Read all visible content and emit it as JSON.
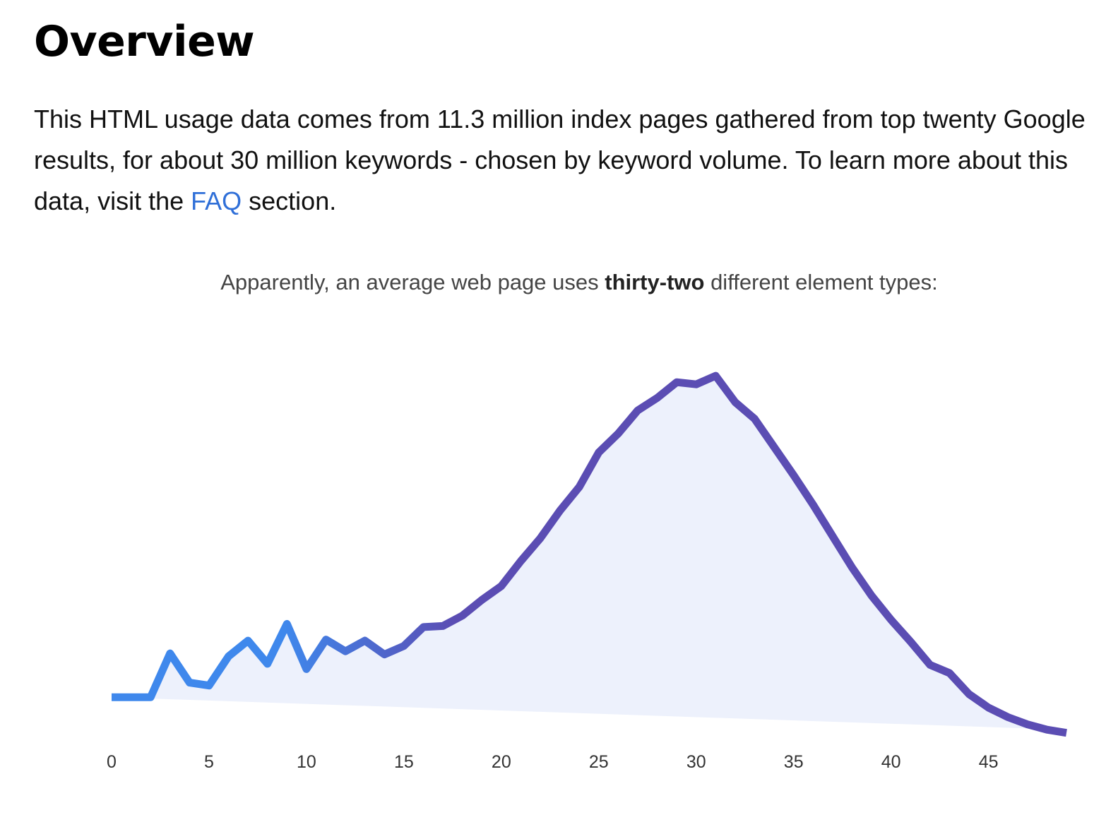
{
  "page": {
    "title": "Overview",
    "intro_before_link": "This HTML usage data comes from 11.3 million index pages gathered from top twenty Google results, for about 30 million keywords - chosen by keyword volume. To learn more about this data, visit the ",
    "faq_link": "FAQ",
    "intro_after_link": " section."
  },
  "chart_caption": {
    "before": "Apparently, an average web page uses ",
    "bold": "thirty-two",
    "after": " different element types:"
  },
  "chart_data": {
    "type": "area",
    "x": [
      0,
      1,
      2,
      3,
      4,
      5,
      6,
      7,
      8,
      9,
      10,
      11,
      12,
      13,
      14,
      15,
      16,
      17,
      18,
      19,
      20,
      21,
      22,
      23,
      24,
      25,
      26,
      27,
      28,
      29,
      30,
      31,
      32,
      33,
      34,
      35,
      36,
      37,
      38,
      39,
      40,
      41,
      42,
      43,
      44,
      45,
      46,
      47,
      48,
      49
    ],
    "y": [
      0,
      0,
      0,
      16.5,
      5.5,
      4.4,
      15.4,
      21.3,
      12.6,
      27.6,
      10.6,
      21.7,
      17.3,
      21.3,
      16.1,
      19.3,
      26.4,
      26.8,
      30.7,
      36.6,
      41.8,
      51.2,
      59.8,
      70.1,
      79.1,
      92.1,
      99.2,
      107.9,
      112.6,
      118.5,
      117.7,
      120.9,
      111,
      104.7,
      94.1,
      83.5,
      72.4,
      60.6,
      48.8,
      38.2,
      29.1,
      20.9,
      12.2,
      9.1,
      1.2,
      -3.9,
      -7.5,
      -10.2,
      -12.2,
      -13.4
    ],
    "baseline_end": -12.2,
    "xticks": [
      0,
      5,
      10,
      15,
      20,
      25,
      30,
      35,
      40,
      45
    ],
    "xlim": [
      0,
      49
    ],
    "ylim": [
      -14,
      122
    ],
    "title": "",
    "xlabel": "",
    "ylabel": "",
    "grid": false,
    "line_color_start": "#3f88ec",
    "line_color_end": "#5b4db3",
    "fill_color": "#edf1fc"
  }
}
